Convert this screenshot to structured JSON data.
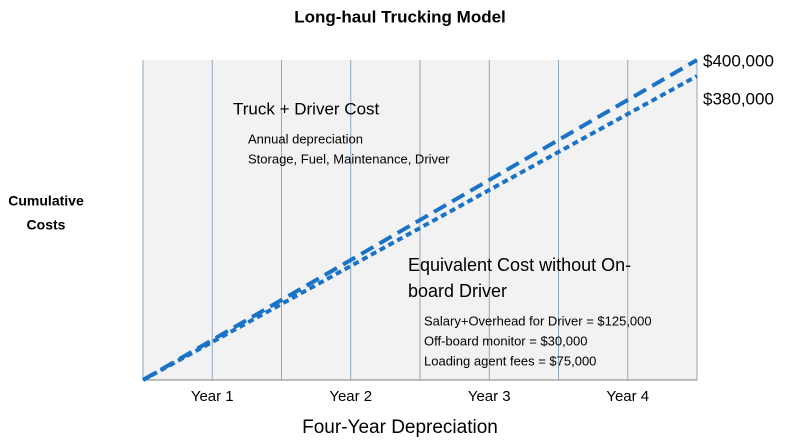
{
  "chart_data": {
    "type": "line",
    "title": "Long-haul Trucking Model",
    "xlabel": "Four-Year Depreciation",
    "ylabel": [
      "Cumulative",
      "Costs"
    ],
    "xlim": [
      0,
      4
    ],
    "ylim": [
      0,
      400000
    ],
    "xticks": [
      {
        "value": 0.5,
        "label": "Year 1"
      },
      {
        "value": 1.5,
        "label": "Year 2"
      },
      {
        "value": 2.5,
        "label": "Year 3"
      },
      {
        "value": 3.5,
        "label": "Year 4"
      }
    ],
    "minor_xticks": [
      0,
      1,
      2,
      3,
      4
    ],
    "grid": true,
    "series": [
      {
        "label": [
          "Truck + Driver Cost"
        ],
        "notes": [
          "Annual depreciation",
          "Storage, Fuel, Maintenance, Driver"
        ],
        "color": "#1a73c6",
        "dash": "long",
        "x": [
          0,
          4
        ],
        "values": [
          0,
          400000
        ],
        "value_labels": [
          null,
          "$400,000"
        ]
      },
      {
        "label": [
          "Equivalent Cost without On-",
          "board Driver"
        ],
        "notes": [
          "Salary+Overhead for Driver = $125,000",
          "Off-board monitor  = $30,000",
          "Loading agent fees = $75,000"
        ],
        "color": "#1a73c6",
        "dash": "short",
        "x": [
          0,
          4
        ],
        "values": [
          0,
          380000
        ],
        "value_labels": [
          null,
          "$380,000"
        ]
      }
    ]
  }
}
